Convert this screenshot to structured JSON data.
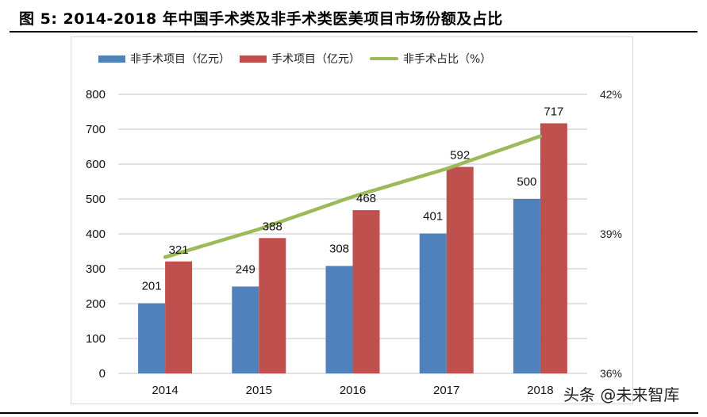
{
  "figure": {
    "title": "图 5:  2014-2018 年中国手术类及非手术类医美项目市场份额及占比",
    "watermark": "头条 @未来智库"
  },
  "colors": {
    "non_surgical": "#4F81BD",
    "surgical": "#C0504D",
    "share_line": "#9BBB59",
    "grid": "#D9D9D9"
  },
  "chart_data": {
    "type": "bar",
    "title": "2014-2018 年中国手术类及非手术类医美项目市场份额及占比",
    "xlabel": "",
    "ylabel": "",
    "categories": [
      "2014",
      "2015",
      "2016",
      "2017",
      "2018"
    ],
    "ylim": [
      0,
      800
    ],
    "yticks": [
      "0",
      "100",
      "200",
      "300",
      "400",
      "500",
      "600",
      "700",
      "800"
    ],
    "ytick_values": [
      0,
      100,
      200,
      300,
      400,
      500,
      600,
      700,
      800
    ],
    "y2lim": [
      36,
      42
    ],
    "y2ticks": [
      "36%",
      "39%",
      "42%"
    ],
    "y2tick_values": [
      36,
      39,
      42
    ],
    "grid": true,
    "legend_position": "top",
    "series": [
      {
        "name": "非手术项目（亿元）",
        "type": "bar",
        "axis": "left",
        "values": [
          201,
          249,
          308,
          401,
          500
        ],
        "labels": [
          "201",
          "249",
          "308",
          "401",
          "500"
        ]
      },
      {
        "name": "手术项目（亿元）",
        "type": "bar",
        "axis": "left",
        "values": [
          321,
          388,
          468,
          592,
          717
        ],
        "labels": [
          "321",
          "388",
          "468",
          "592",
          "717"
        ]
      },
      {
        "name": "非手术占比（%）",
        "type": "line",
        "axis": "right",
        "values": [
          38.5,
          39.1,
          39.8,
          40.4,
          41.1
        ]
      }
    ]
  }
}
